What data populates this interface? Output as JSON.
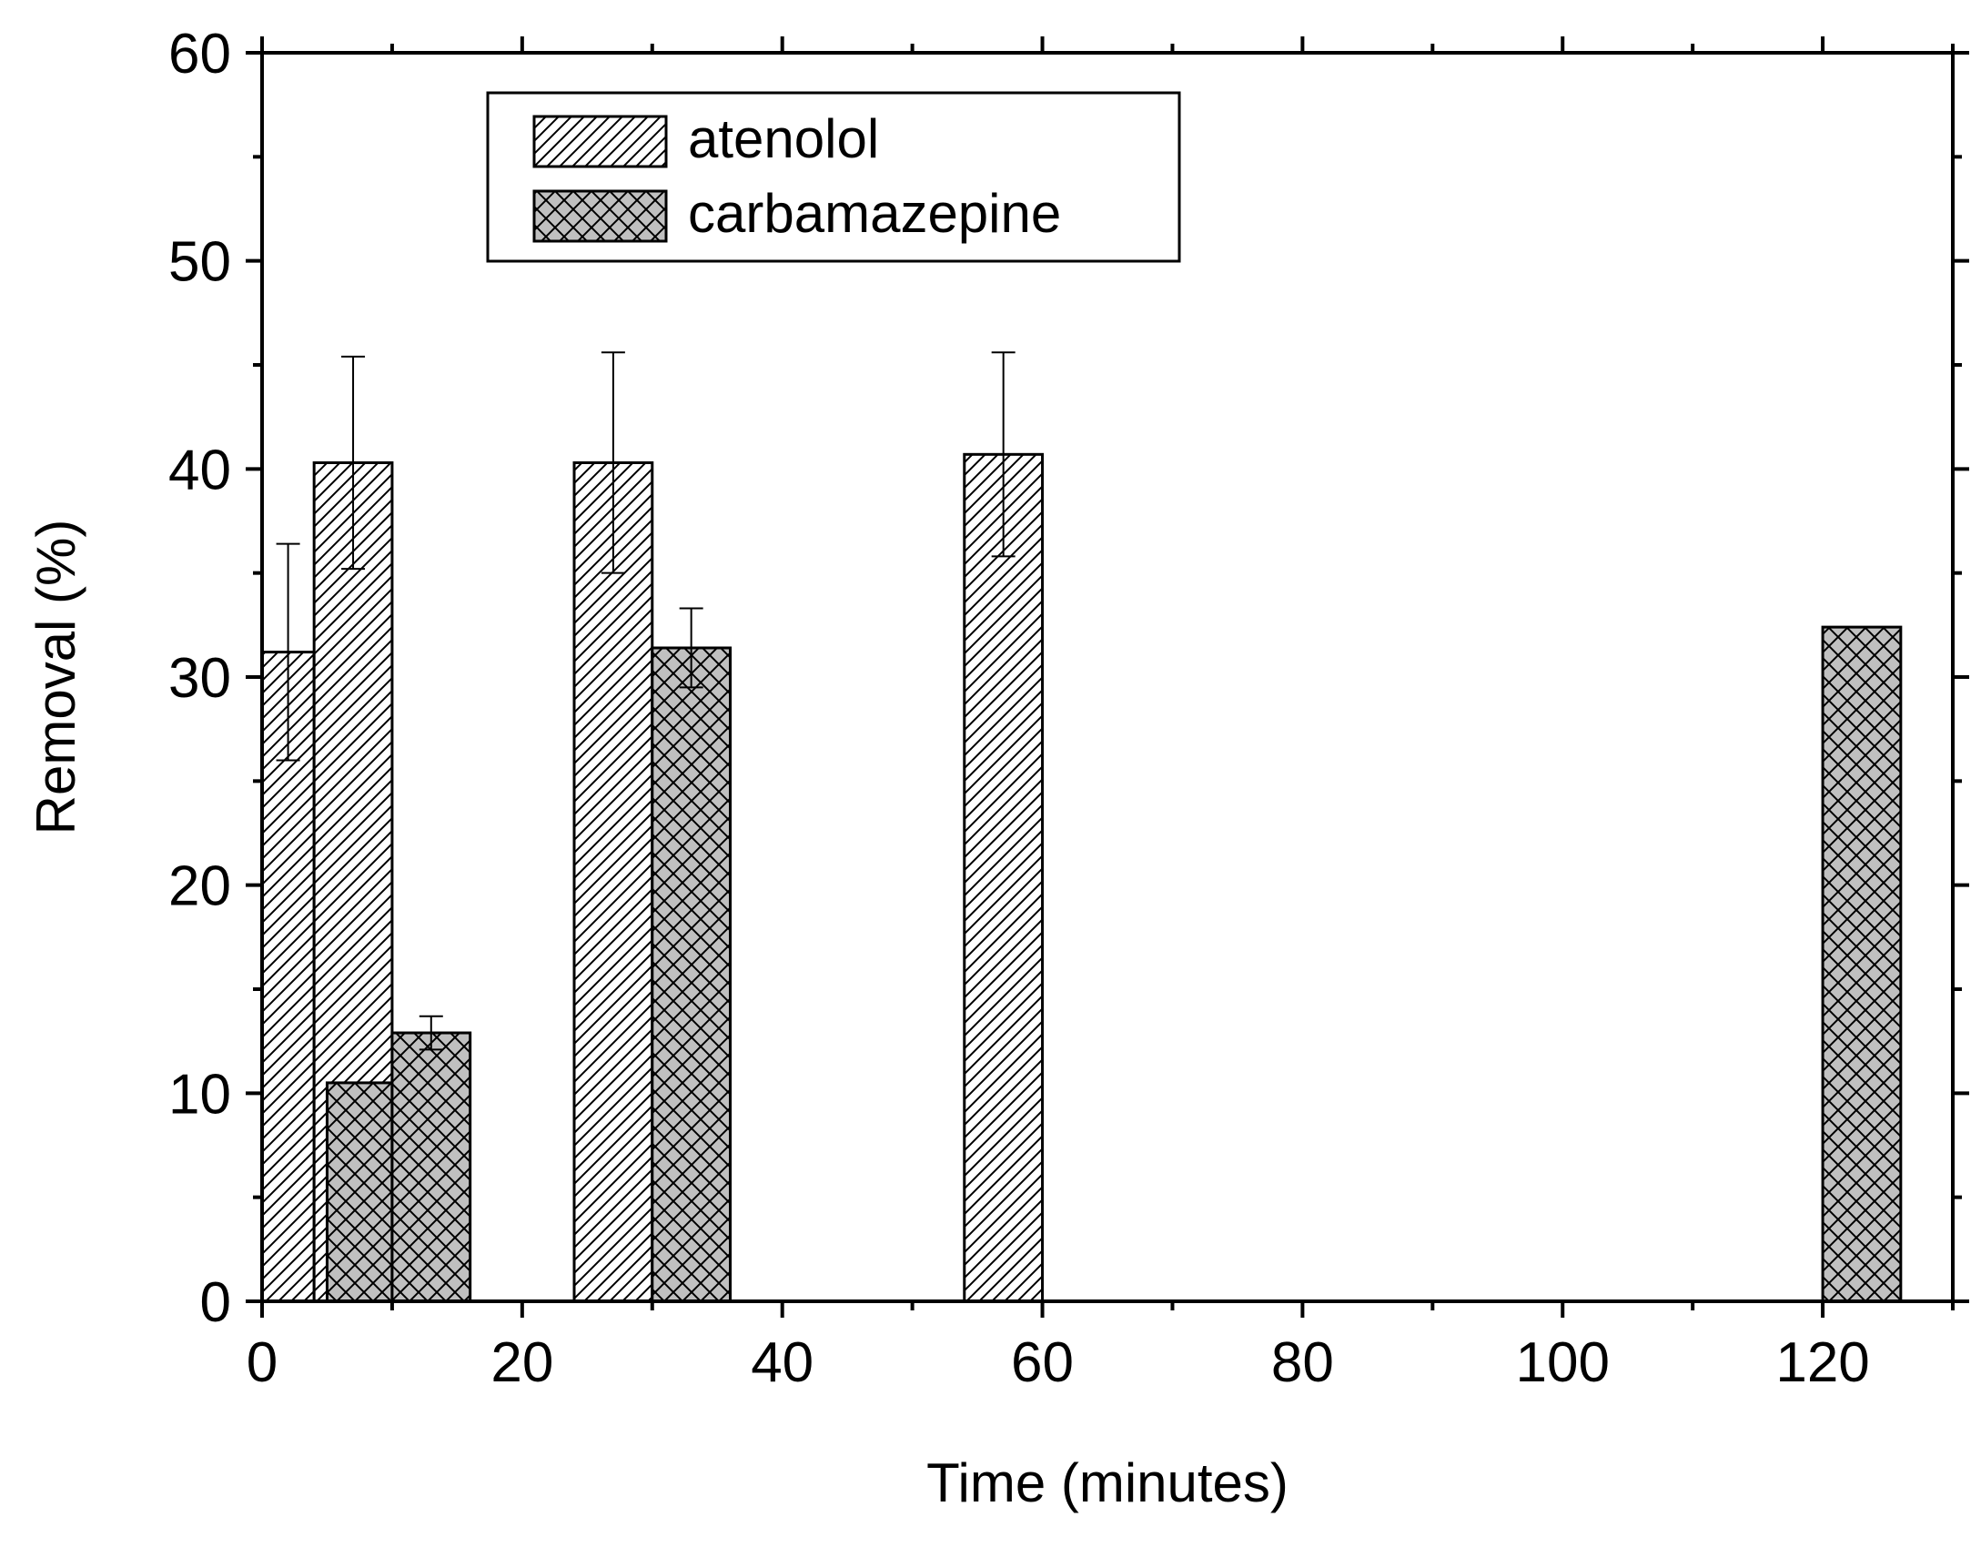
{
  "chart_data": {
    "type": "bar",
    "title": "",
    "xlabel": "Time (minutes)",
    "ylabel": "Removal (%)",
    "xlim": [
      0,
      130
    ],
    "ylim": [
      0,
      60
    ],
    "xticks": [
      0,
      20,
      40,
      60,
      80,
      100,
      120
    ],
    "xticks_minor": [
      10,
      30,
      50,
      70,
      90,
      110,
      130
    ],
    "yticks": [
      0,
      10,
      20,
      30,
      40,
      50,
      60
    ],
    "yticks_minor": [
      5,
      15,
      25,
      35,
      45,
      55
    ],
    "grid": false,
    "legend_position": "top-left",
    "series": [
      {
        "name": "atenolol",
        "pattern": "diagonal-hatch",
        "fill": "#ffffff",
        "points": [
          {
            "x_start": 0,
            "x_end": 4,
            "value": 31.2,
            "error": 5.2
          },
          {
            "x_start": 4,
            "x_end": 10,
            "value": 40.3,
            "error": 5.1
          },
          {
            "x_start": 24,
            "x_end": 30,
            "value": 40.3,
            "error": 5.3
          },
          {
            "x_start": 54,
            "x_end": 60,
            "value": 40.7,
            "error": 4.9
          }
        ]
      },
      {
        "name": "carbamazepine",
        "pattern": "cross-hatch",
        "fill": "#c0c0c0",
        "points": [
          {
            "x_start": 5,
            "x_end": 10,
            "value": 10.5,
            "error": null
          },
          {
            "x_start": 10,
            "x_end": 16,
            "value": 12.9,
            "error": 0.8
          },
          {
            "x_start": 30,
            "x_end": 36,
            "value": 31.4,
            "error": 1.9
          },
          {
            "x_start": 120,
            "x_end": 126,
            "value": 32.4,
            "error": null
          }
        ]
      }
    ]
  }
}
